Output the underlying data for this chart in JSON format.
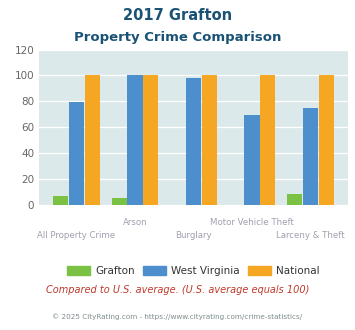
{
  "title_line1": "2017 Grafton",
  "title_line2": "Property Crime Comparison",
  "groups": [
    "All Property Crime",
    "Arson",
    "Burglary",
    "Motor Vehicle Theft",
    "Larceny & Theft"
  ],
  "grafton": [
    7,
    5,
    0,
    0,
    8
  ],
  "west_virginia": [
    79,
    100,
    98,
    69,
    75
  ],
  "national": [
    100,
    100,
    100,
    100,
    100
  ],
  "grafton_color": "#7bc143",
  "west_virginia_color": "#4d8fcc",
  "national_color": "#f5a623",
  "bg_color": "#dce9ea",
  "title_color": "#1a5276",
  "ylim": [
    0,
    120
  ],
  "yticks": [
    0,
    20,
    40,
    60,
    80,
    100,
    120
  ],
  "upper_labels": [
    "",
    "Arson",
    "",
    "Motor Vehicle Theft",
    ""
  ],
  "lower_labels": [
    "All Property Crime",
    "",
    "Burglary",
    "",
    "Larceny & Theft"
  ],
  "footnote": "Compared to U.S. average. (U.S. average equals 100)",
  "copyright": "© 2025 CityRating.com - https://www.cityrating.com/crime-statistics/",
  "footnote_color": "#c0392b",
  "copyright_color": "#7f8c8d",
  "legend_labels": [
    "Grafton",
    "West Virginia",
    "National"
  ]
}
